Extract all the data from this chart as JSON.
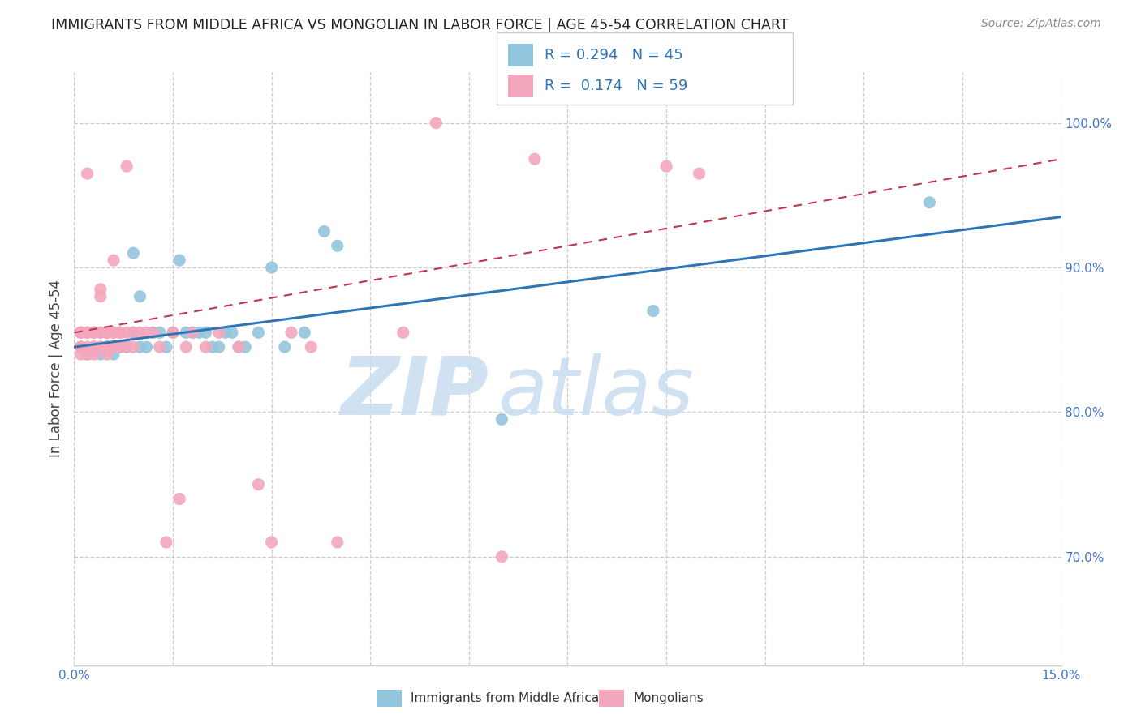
{
  "title": "IMMIGRANTS FROM MIDDLE AFRICA VS MONGOLIAN IN LABOR FORCE | AGE 45-54 CORRELATION CHART",
  "source": "Source: ZipAtlas.com",
  "ylabel": "In Labor Force | Age 45-54",
  "xlim": [
    0.0,
    0.15
  ],
  "ylim": [
    0.625,
    1.035
  ],
  "yticks_right": [
    0.7,
    0.8,
    0.9,
    1.0
  ],
  "yticklabels_right": [
    "70.0%",
    "80.0%",
    "90.0%",
    "100.0%"
  ],
  "blue_R": "0.294",
  "blue_N": "45",
  "pink_R": "0.174",
  "pink_N": "59",
  "blue_color": "#92c5de",
  "pink_color": "#f4a6bc",
  "blue_trend_color": "#2e75b6",
  "pink_trend_color": "#c0384b",
  "watermark_zip": "ZIP",
  "watermark_atlas": "atlas",
  "legend_label_blue": "Immigrants from Middle Africa",
  "legend_label_pink": "Mongolians",
  "blue_trend_x": [
    0.0,
    0.15
  ],
  "blue_trend_y": [
    0.845,
    0.935
  ],
  "pink_trend_x": [
    0.0,
    0.15
  ],
  "pink_trend_y": [
    0.855,
    0.975
  ],
  "blue_scatter_x": [
    0.001,
    0.001,
    0.002,
    0.002,
    0.003,
    0.003,
    0.004,
    0.004,
    0.005,
    0.005,
    0.005,
    0.006,
    0.006,
    0.007,
    0.007,
    0.008,
    0.009,
    0.009,
    0.01,
    0.01,
    0.011,
    0.012,
    0.013,
    0.014,
    0.015,
    0.016,
    0.017,
    0.018,
    0.019,
    0.02,
    0.021,
    0.022,
    0.023,
    0.024,
    0.025,
    0.026,
    0.028,
    0.03,
    0.032,
    0.035,
    0.038,
    0.04,
    0.065,
    0.088,
    0.13
  ],
  "blue_scatter_y": [
    0.845,
    0.855,
    0.84,
    0.855,
    0.845,
    0.855,
    0.84,
    0.855,
    0.845,
    0.855,
    0.845,
    0.855,
    0.84,
    0.855,
    0.845,
    0.845,
    0.91,
    0.855,
    0.88,
    0.845,
    0.845,
    0.855,
    0.855,
    0.845,
    0.855,
    0.905,
    0.855,
    0.855,
    0.855,
    0.855,
    0.845,
    0.845,
    0.855,
    0.855,
    0.845,
    0.845,
    0.855,
    0.9,
    0.845,
    0.855,
    0.925,
    0.915,
    0.795,
    0.87,
    0.945
  ],
  "pink_scatter_x": [
    0.001,
    0.001,
    0.001,
    0.001,
    0.002,
    0.002,
    0.002,
    0.002,
    0.002,
    0.003,
    0.003,
    0.003,
    0.003,
    0.003,
    0.004,
    0.004,
    0.004,
    0.004,
    0.004,
    0.005,
    0.005,
    0.005,
    0.005,
    0.005,
    0.006,
    0.006,
    0.006,
    0.006,
    0.007,
    0.007,
    0.007,
    0.008,
    0.008,
    0.008,
    0.009,
    0.009,
    0.01,
    0.011,
    0.012,
    0.013,
    0.014,
    0.015,
    0.016,
    0.017,
    0.018,
    0.02,
    0.022,
    0.025,
    0.028,
    0.03,
    0.033,
    0.036,
    0.04,
    0.05,
    0.055,
    0.065,
    0.07,
    0.09,
    0.095
  ],
  "pink_scatter_y": [
    0.845,
    0.855,
    0.84,
    0.855,
    0.965,
    0.855,
    0.845,
    0.855,
    0.84,
    0.855,
    0.845,
    0.855,
    0.84,
    0.845,
    0.885,
    0.88,
    0.845,
    0.855,
    0.845,
    0.855,
    0.84,
    0.845,
    0.855,
    0.845,
    0.855,
    0.905,
    0.855,
    0.845,
    0.855,
    0.845,
    0.855,
    0.97,
    0.855,
    0.845,
    0.855,
    0.845,
    0.855,
    0.855,
    0.855,
    0.845,
    0.71,
    0.855,
    0.74,
    0.845,
    0.855,
    0.845,
    0.855,
    0.845,
    0.75,
    0.71,
    0.855,
    0.845,
    0.71,
    0.855,
    1.0,
    0.7,
    0.975,
    0.97,
    0.965
  ]
}
